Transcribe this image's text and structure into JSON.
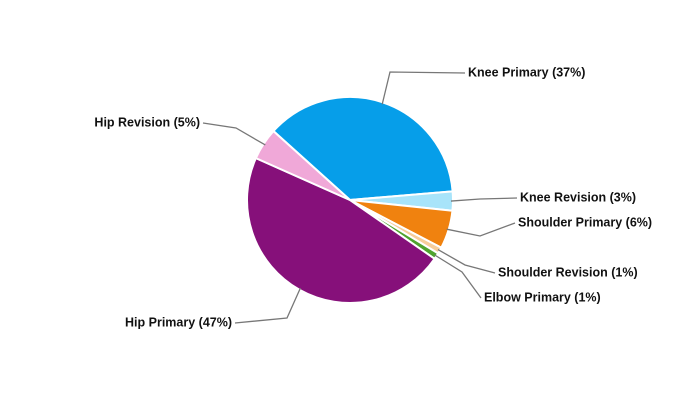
{
  "chart_data": {
    "type": "pie",
    "categories": [
      "Knee Primary (37%)",
      "Knee Revision (3%)",
      "Shoulder Primary (6%)",
      "Shoulder Revision (1%)",
      "Elbow Primary (1%)",
      "Hip Primary (47%)",
      "Hip Revision (5%)"
    ],
    "values": [
      37,
      3,
      6,
      1,
      1,
      47,
      5
    ],
    "colors": [
      "#069ee9",
      "#a8e4fa",
      "#f0820f",
      "#f6cd9a",
      "#4fa32e",
      "#86107a",
      "#f0a8d8"
    ]
  }
}
